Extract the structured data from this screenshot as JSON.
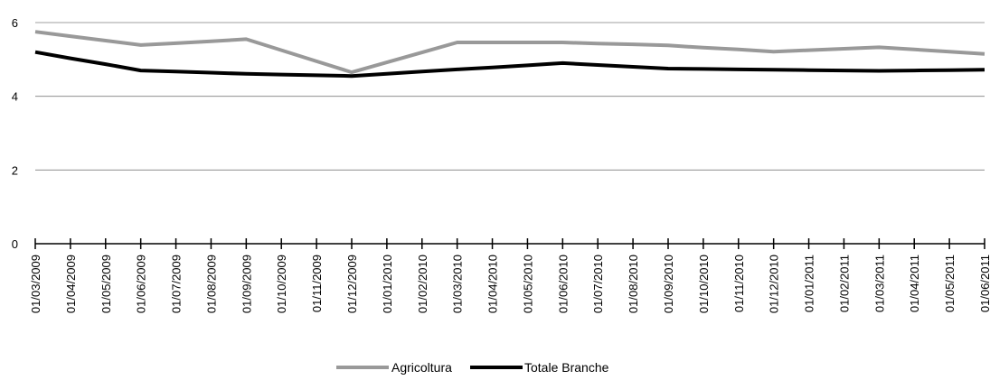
{
  "chart_data": {
    "type": "line",
    "title": "",
    "xlabel": "",
    "ylabel": "",
    "ylim": [
      0,
      6
    ],
    "yticks": [
      0,
      2,
      4,
      6
    ],
    "grid": "horizontal",
    "legend_position": "bottom",
    "categories": [
      "01/03/2009",
      "01/04/2009",
      "01/05/2009",
      "01/06/2009",
      "01/07/2009",
      "01/08/2009",
      "01/09/2009",
      "01/10/2009",
      "01/11/2009",
      "01/12/2009",
      "01/01/2010",
      "01/02/2010",
      "01/03/2010",
      "01/04/2010",
      "01/05/2010",
      "01/06/2010",
      "01/07/2010",
      "01/08/2010",
      "01/09/2010",
      "01/10/2010",
      "01/11/2010",
      "01/12/2010",
      "01/01/2011",
      "01/02/2011",
      "01/03/2011",
      "01/04/2011",
      "01/05/2011",
      "01/06/2011"
    ],
    "series": [
      {
        "name": "Agricoltura",
        "color": "#999999",
        "values": [
          5.75,
          5.63,
          5.51,
          5.39,
          5.44,
          5.49,
          5.55,
          5.25,
          4.95,
          4.65,
          4.92,
          5.19,
          5.46,
          5.46,
          5.46,
          5.46,
          5.43,
          5.41,
          5.38,
          5.32,
          5.27,
          5.21,
          5.25,
          5.29,
          5.33,
          5.27,
          5.21,
          5.15
        ]
      },
      {
        "name": "Totale Branche",
        "color": "#000000",
        "values": [
          5.2,
          5.03,
          4.87,
          4.7,
          4.67,
          4.64,
          4.61,
          4.59,
          4.57,
          4.55,
          4.61,
          4.67,
          4.73,
          4.78,
          4.84,
          4.9,
          4.85,
          4.8,
          4.75,
          4.74,
          4.73,
          4.72,
          4.71,
          4.7,
          4.69,
          4.7,
          4.71,
          4.72
        ]
      }
    ]
  }
}
